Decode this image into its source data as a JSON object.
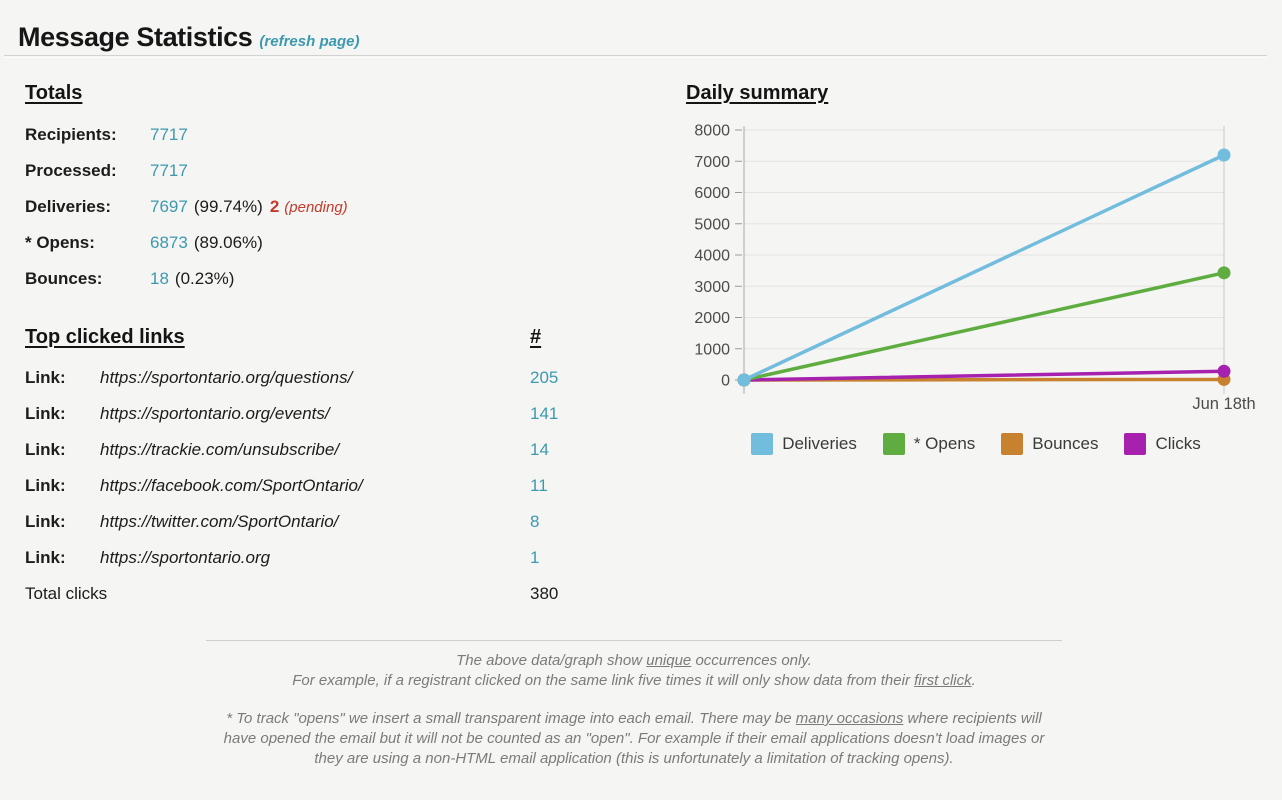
{
  "page": {
    "title": "Message Statistics",
    "refresh_link": "(refresh page)"
  },
  "colors": {
    "accent_teal": "#3d99b0",
    "alert_red": "#c23b2c",
    "background": "#f5f5f3"
  },
  "totals": {
    "heading": "Totals",
    "rows": [
      {
        "label": "Recipients:",
        "value": "7717"
      },
      {
        "label": "Processed:",
        "value": "7717"
      },
      {
        "label": "Deliveries:",
        "value": "7697",
        "extra": "(99.74%)",
        "pending_value": "2",
        "pending_label": "(pending)"
      },
      {
        "label": "* Opens:",
        "value": "6873",
        "extra": "(89.06%)"
      },
      {
        "label": "Bounces:",
        "value": "18",
        "extra": "(0.23%)"
      }
    ]
  },
  "top_links": {
    "heading": "Top clicked links",
    "count_heading": "#",
    "row_label": "Link:",
    "rows": [
      {
        "url": "https://sportontario.org/questions/",
        "count": "205"
      },
      {
        "url": "https://sportontario.org/events/",
        "count": "141"
      },
      {
        "url": "https://trackie.com/unsubscribe/",
        "count": "14"
      },
      {
        "url": "https://facebook.com/SportOntario/",
        "count": "11"
      },
      {
        "url": "https://twitter.com/SportOntario/",
        "count": "8"
      },
      {
        "url": "https://sportontario.org",
        "count": "1"
      }
    ],
    "total_label": "Total clicks",
    "total_value": "380"
  },
  "chart_data": {
    "type": "line",
    "title": "Daily summary",
    "x": [
      "",
      "Jun 18th"
    ],
    "series": [
      {
        "name": "Deliveries",
        "color": "#72bdde",
        "values": [
          0,
          7200
        ]
      },
      {
        "name": "* Opens",
        "color": "#5fad41",
        "values": [
          0,
          3430
        ]
      },
      {
        "name": "Bounces",
        "color": "#c8812e",
        "values": [
          0,
          18
        ]
      },
      {
        "name": "Clicks",
        "color": "#a521ae",
        "values": [
          0,
          280
        ]
      }
    ],
    "ylim": [
      0,
      8000
    ],
    "yticks": [
      0,
      1000,
      2000,
      3000,
      4000,
      5000,
      6000,
      7000,
      8000
    ],
    "grid": true,
    "legend_position": "bottom"
  },
  "footer": {
    "line1_pre": "The above data/graph show ",
    "line1_u": "unique",
    "line1_post": " occurrences only.",
    "line2_pre": "For example, if a registrant clicked on the same link five times it will only show data from their ",
    "line2_u": "first click",
    "line2_post": ".",
    "note_pre": "* To track \"opens\" we insert a small transparent image into each email. There may be ",
    "note_u": "many occasions",
    "note_post": " where recipients will have opened the email but it will not be counted as an \"open\". For example if their email applications doesn't load images or they are using a non-HTML email application (this is unfortunately a limitation of tracking opens)."
  }
}
